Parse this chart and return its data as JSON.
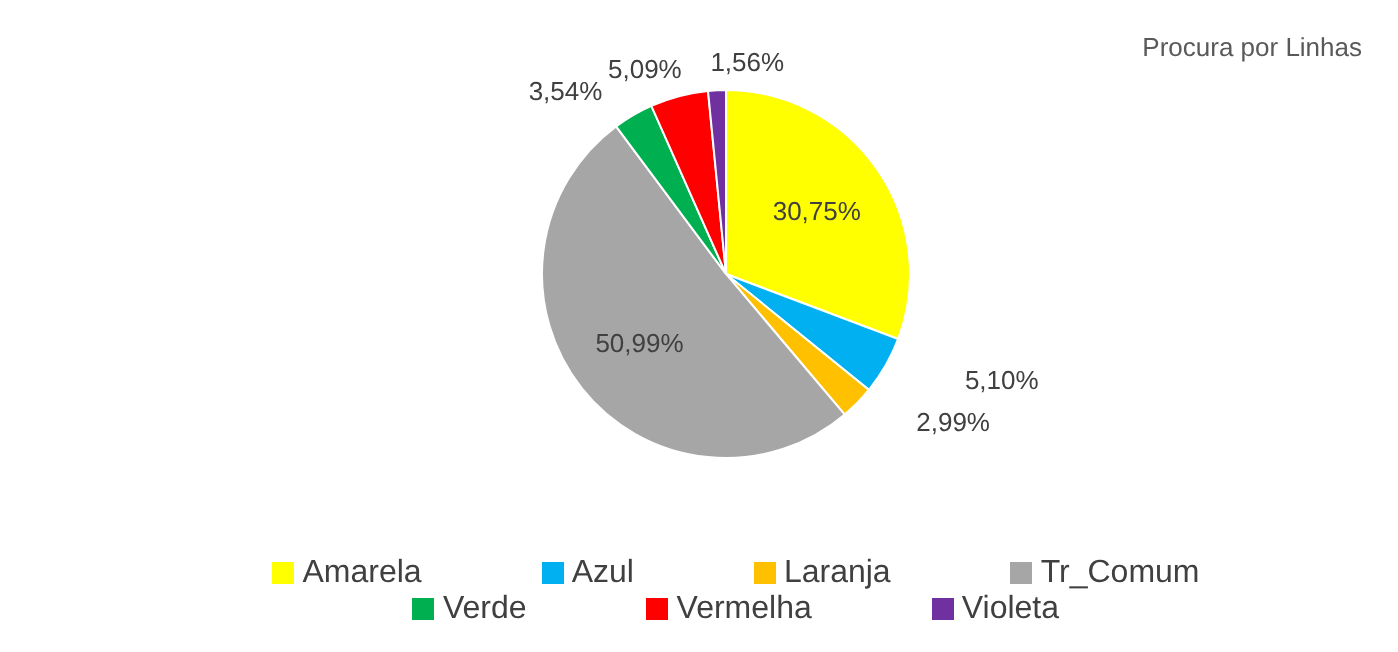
{
  "chart_data": {
    "type": "pie",
    "title": "Procura por Linhas",
    "categories": [
      "Amarela",
      "Azul",
      "Laranja",
      "Tr_Comum",
      "Verde",
      "Vermelha",
      "Violeta"
    ],
    "values": [
      30.75,
      5.1,
      2.99,
      50.99,
      3.54,
      5.09,
      1.56
    ],
    "colors": [
      "#ffff00",
      "#00b0f0",
      "#ffc000",
      "#a6a6a6",
      "#00b050",
      "#ff0000",
      "#7030a0"
    ],
    "value_labels": [
      "30,75%",
      "5,10%",
      "2,99%",
      "50,99%",
      "3,54%",
      "5,09%",
      "1,56%"
    ],
    "legend": "bottom"
  }
}
